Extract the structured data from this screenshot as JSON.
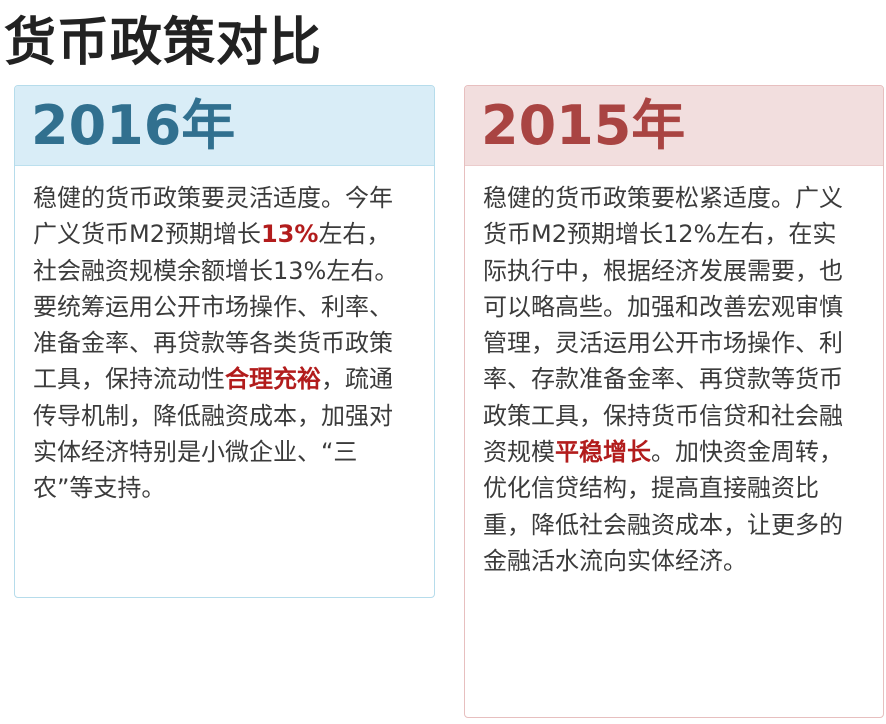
{
  "page": {
    "title": "货币政策对比"
  },
  "colors": {
    "left_accent": "#31708f",
    "left_header_bg": "#d9edf7",
    "right_accent": "#a94442",
    "right_header_bg": "#f2dede",
    "highlight": "#b21c1c"
  },
  "cards": [
    {
      "year": "2016年",
      "text": {
        "part1": "稳健的货币政策要灵活适度。今年广义货币M2预期增长",
        "highlight1": "13%",
        "part2": "左右，社会融资规模余额增长13%左右。要统筹运用公开市场操作、利率、准备金率、再贷款等各类货币政策工具，保持流动性",
        "highlight2": "合理充裕",
        "part3": "，疏通传导机制，降低融资成本，加强对实体经济特别是小微企业、“三农”等支持。"
      }
    },
    {
      "year": "2015年",
      "text": {
        "part1": "稳健的货币政策要松紧适度。广义货币M2预期增长12%左右，在实际执行中，根据经济发展需要，也可以略高些。加强和改善宏观审慎管理，灵活运用公开市场操作、利率、存款准备金率、再贷款等货币政策工具，保持货币信贷和社会融资规模",
        "highlight1": "平稳增长",
        "part2": "。加快资金周转，优化信贷结构，提高直接融资比重，降低社会融资成本，让更多的金融活水流向实体经济。"
      }
    }
  ]
}
